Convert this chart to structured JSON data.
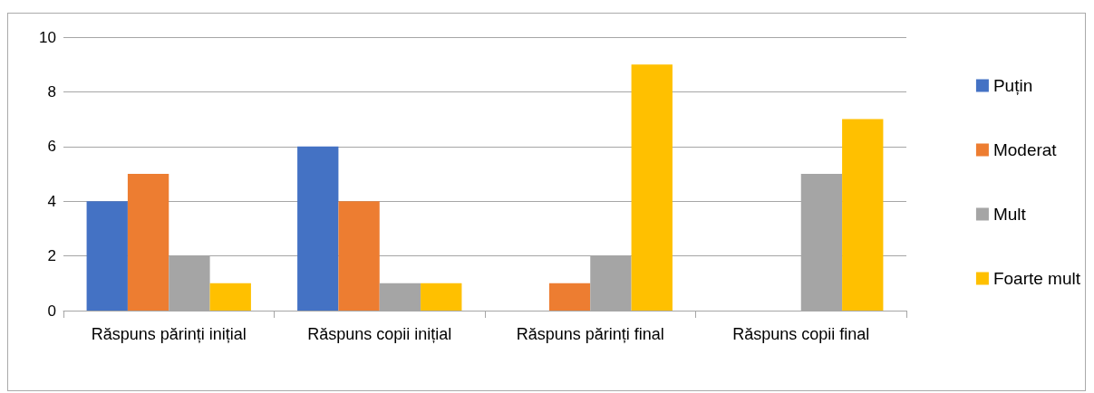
{
  "chart_data": {
    "type": "bar",
    "categories": [
      "Răspuns părinți inițial",
      "Răspuns copii inițial",
      "Răspuns părinți final",
      "Răspuns copii final"
    ],
    "series": [
      {
        "name": "Puțin",
        "color": "#4472c4",
        "values": [
          4,
          6,
          0,
          0
        ]
      },
      {
        "name": "Moderat",
        "color": "#ed7d31",
        "values": [
          5,
          4,
          1,
          0
        ]
      },
      {
        "name": "Mult",
        "color": "#a5a5a5",
        "values": [
          2,
          1,
          2,
          5
        ]
      },
      {
        "name": "Foarte mult",
        "color": "#ffc000",
        "values": [
          1,
          1,
          9,
          7
        ]
      }
    ],
    "ylim": [
      0,
      10
    ],
    "yticks": [
      0,
      2,
      4,
      6,
      8,
      10
    ],
    "grid": "y",
    "legend": "right"
  }
}
